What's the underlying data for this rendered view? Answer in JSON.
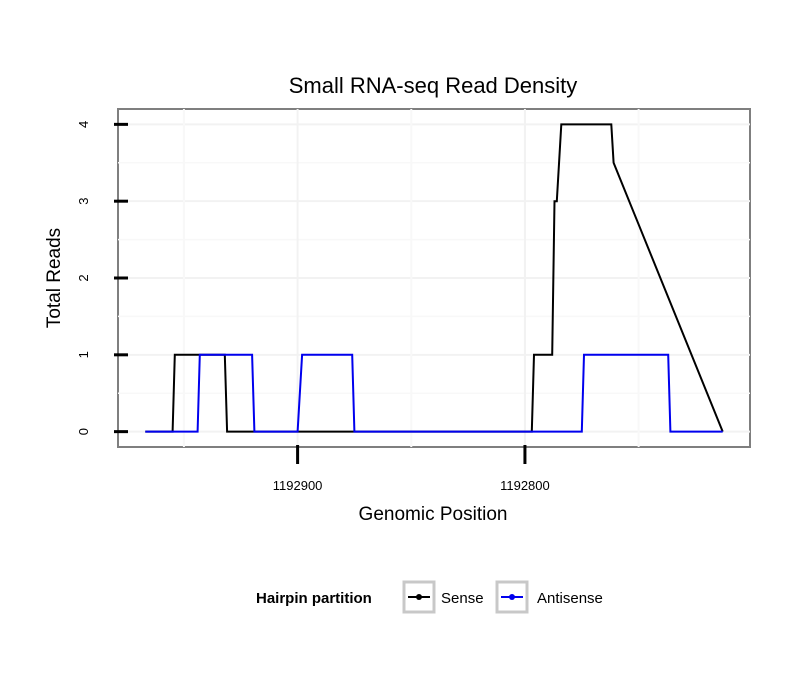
{
  "chart_data": {
    "type": "line",
    "title": "Small RNA-seq Read Density",
    "xlabel": "Genomic Position",
    "ylabel": "Total Reads",
    "x_reversed": true,
    "xlim": [
      1192979,
      1192701
    ],
    "ylim": [
      -0.2,
      4.2
    ],
    "xticks": [
      1192900,
      1192800
    ],
    "yticks": [
      0,
      1,
      2,
      3,
      4
    ],
    "grid": true,
    "legend": {
      "title": "Hairpin partition",
      "position": "bottom",
      "entries": [
        {
          "name": "Sense",
          "color": "#000000"
        },
        {
          "name": "Antisense",
          "color": "#0000ee"
        }
      ]
    },
    "series": [
      {
        "name": "Sense",
        "color": "#000000",
        "x": [
          1192967,
          1192955,
          1192954,
          1192932,
          1192931,
          1192825,
          1192822,
          1192820,
          1192814,
          1192812,
          1192801,
          1192799,
          1192798,
          1192797,
          1192796,
          1192788,
          1192787,
          1192786,
          1192784,
          1192762,
          1192761,
          1192713
        ],
        "y": [
          0,
          0,
          1,
          1,
          0,
          0,
          0,
          0,
          0,
          0,
          0,
          0,
          0,
          0,
          1,
          1,
          3,
          3,
          4,
          4,
          3.5,
          0
        ]
      },
      {
        "name": "Antisense",
        "color": "#0000ee",
        "x": [
          1192967,
          1192944,
          1192943,
          1192920,
          1192919,
          1192900,
          1192898,
          1192876,
          1192875,
          1192806,
          1192798,
          1192775,
          1192774,
          1192755,
          1192754,
          1192737,
          1192736,
          1192713
        ],
        "y": [
          0,
          0,
          1,
          1,
          0,
          0,
          1,
          1,
          0,
          0,
          0,
          0,
          1,
          1,
          1,
          1,
          0,
          0
        ]
      }
    ]
  }
}
